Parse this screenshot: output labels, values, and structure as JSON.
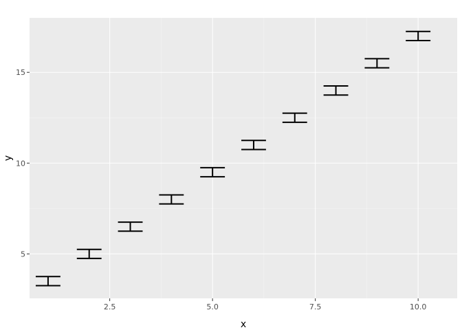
{
  "chart_data": {
    "type": "errorbar",
    "title": "",
    "xlabel": "x",
    "ylabel": "y",
    "xlim": [
      0.55,
      10.95
    ],
    "ylim": [
      2.55,
      18.0
    ],
    "x_ticks": [
      2.5,
      5.0,
      7.5,
      10.0
    ],
    "x_tick_labels": [
      "2.5",
      "5.0",
      "7.5",
      "10.0"
    ],
    "y_ticks": [
      5,
      10,
      15
    ],
    "y_tick_labels": [
      "5",
      "10",
      "15"
    ],
    "grid": true,
    "x": [
      1,
      2,
      3,
      4,
      5,
      6,
      7,
      8,
      9,
      10
    ],
    "ymin": [
      3.25,
      4.75,
      6.25,
      7.75,
      9.25,
      10.75,
      12.25,
      13.75,
      15.25,
      16.75
    ],
    "ymax": [
      3.75,
      5.25,
      6.75,
      8.25,
      9.75,
      11.25,
      12.75,
      14.25,
      15.75,
      17.25
    ],
    "cap_width": 0.6,
    "colors": {
      "panel": "#ebebeb",
      "grid_major": "#ffffff",
      "errorbar": "#000000",
      "tick_text": "#4d4d4d"
    }
  }
}
